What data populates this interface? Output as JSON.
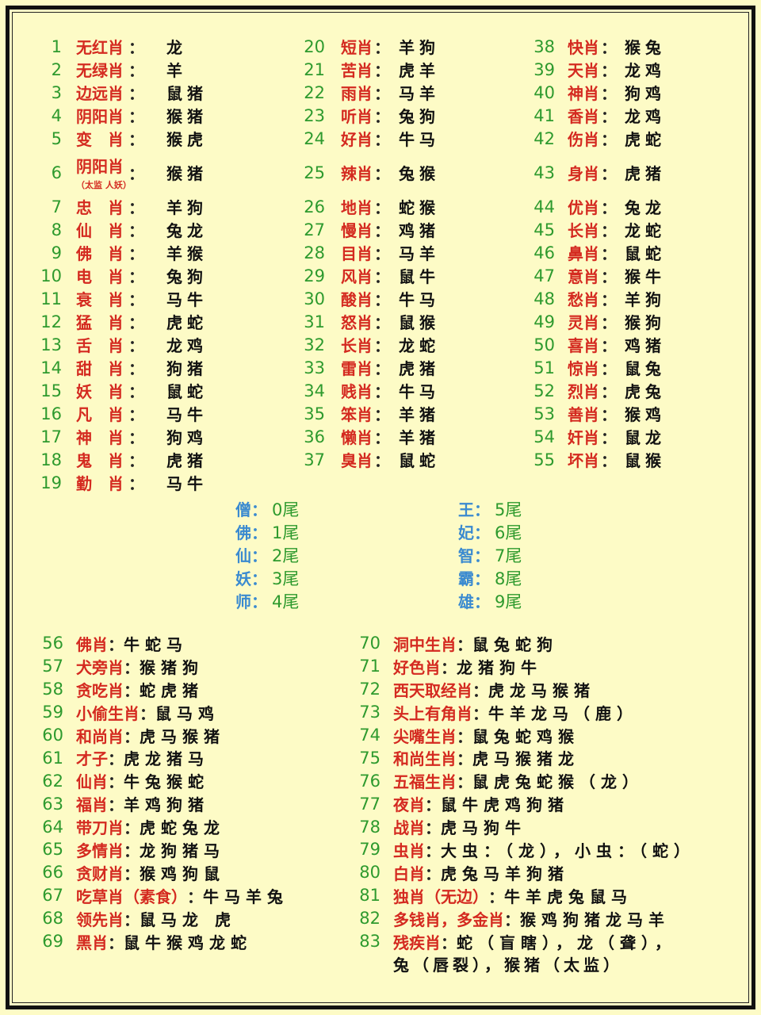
{
  "colors": {
    "number": "#2e9a2e",
    "label": "#d42a20",
    "value": "#111111",
    "tail_key": "#3a8ad0",
    "background": "#fdfbc6"
  },
  "sep": "：",
  "top_columns": [
    [
      {
        "num": "1",
        "label": "无红肖",
        "value": "龙"
      },
      {
        "num": "2",
        "label": "无绿肖",
        "value": "羊"
      },
      {
        "num": "3",
        "label": "边远肖",
        "value": "鼠猪"
      },
      {
        "num": "4",
        "label": "阴阳肖",
        "value": "猴猪"
      },
      {
        "num": "5",
        "label": "变　肖",
        "value": "猴虎"
      },
      {
        "num": "6",
        "label": "阴阳肖",
        "sub": "（太监 人妖）",
        "value": "猴猪"
      },
      {
        "num": "7",
        "label": "忠　肖",
        "value": "羊狗"
      },
      {
        "num": "8",
        "label": "仙　肖",
        "value": "兔龙"
      },
      {
        "num": "9",
        "label": "佛　肖",
        "value": "羊猴"
      },
      {
        "num": "10",
        "label": "电　肖",
        "value": "兔狗"
      },
      {
        "num": "11",
        "label": "衰　肖",
        "value": "马牛"
      },
      {
        "num": "12",
        "label": "猛　肖",
        "value": "虎蛇"
      },
      {
        "num": "13",
        "label": "舌　肖",
        "value": "龙鸡"
      },
      {
        "num": "14",
        "label": "甜　肖",
        "value": "狗猪"
      },
      {
        "num": "15",
        "label": "妖　肖",
        "value": "鼠蛇"
      },
      {
        "num": "16",
        "label": "凡　肖",
        "value": "马牛"
      },
      {
        "num": "17",
        "label": "神　肖",
        "value": "狗鸡"
      },
      {
        "num": "18",
        "label": "鬼　肖",
        "value": "虎猪"
      },
      {
        "num": "19",
        "label": "勤　肖",
        "value": "马牛"
      }
    ],
    [
      {
        "num": "20",
        "label": "短肖",
        "value": "羊狗"
      },
      {
        "num": "21",
        "label": "苦肖",
        "value": "虎羊"
      },
      {
        "num": "22",
        "label": "雨肖",
        "value": "马羊"
      },
      {
        "num": "23",
        "label": "听肖",
        "value": "兔狗"
      },
      {
        "num": "24",
        "label": "好肖",
        "value": "牛马"
      },
      {
        "num": "25",
        "label": "辣肖",
        "value": "兔猴"
      },
      {
        "num": "26",
        "label": "地肖",
        "value": "蛇猴"
      },
      {
        "num": "27",
        "label": "慢肖",
        "value": "鸡猪"
      },
      {
        "num": "28",
        "label": "目肖",
        "value": "马羊"
      },
      {
        "num": "29",
        "label": "风肖",
        "value": "鼠牛"
      },
      {
        "num": "30",
        "label": "酸肖",
        "value": "牛马"
      },
      {
        "num": "31",
        "label": "怒肖",
        "value": "鼠猴"
      },
      {
        "num": "32",
        "label": "长肖",
        "value": "龙蛇"
      },
      {
        "num": "33",
        "label": "雷肖",
        "value": "虎猪"
      },
      {
        "num": "34",
        "label": "贱肖",
        "value": "牛马"
      },
      {
        "num": "35",
        "label": "笨肖",
        "value": "羊猪"
      },
      {
        "num": "36",
        "label": "懒肖",
        "value": "羊猪"
      },
      {
        "num": "37",
        "label": "臭肖",
        "value": "鼠蛇"
      }
    ],
    [
      {
        "num": "38",
        "label": "快肖",
        "value": "猴兔"
      },
      {
        "num": "39",
        "label": "天肖",
        "value": "龙鸡"
      },
      {
        "num": "40",
        "label": "神肖",
        "value": "狗鸡"
      },
      {
        "num": "41",
        "label": "香肖",
        "value": "龙鸡"
      },
      {
        "num": "42",
        "label": "伤肖",
        "value": "虎蛇"
      },
      {
        "num": "43",
        "label": "身肖",
        "value": "虎猪"
      },
      {
        "num": "44",
        "label": "优肖",
        "value": "兔龙"
      },
      {
        "num": "45",
        "label": "长肖",
        "value": "龙蛇"
      },
      {
        "num": "46",
        "label": "鼻肖",
        "value": "鼠蛇"
      },
      {
        "num": "47",
        "label": "意肖",
        "value": "猴牛"
      },
      {
        "num": "48",
        "label": "愁肖",
        "value": "羊狗"
      },
      {
        "num": "49",
        "label": "灵肖",
        "value": "猴狗"
      },
      {
        "num": "50",
        "label": "喜肖",
        "value": "鸡猪"
      },
      {
        "num": "51",
        "label": "惊肖",
        "value": "鼠兔"
      },
      {
        "num": "52",
        "label": "烈肖",
        "value": "虎兔"
      },
      {
        "num": "53",
        "label": "善肖",
        "value": "猴鸡"
      },
      {
        "num": "54",
        "label": "奸肖",
        "value": "鼠龙"
      },
      {
        "num": "55",
        "label": "坏肖",
        "value": "鼠猴"
      }
    ]
  ],
  "tails": [
    [
      {
        "key": "僧",
        "value": "0尾"
      },
      {
        "key": "佛",
        "value": "1尾"
      },
      {
        "key": "仙",
        "value": "2尾"
      },
      {
        "key": "妖",
        "value": "3尾"
      },
      {
        "key": "师",
        "value": "4尾"
      }
    ],
    [
      {
        "key": "王",
        "value": "5尾"
      },
      {
        "key": "妃",
        "value": "6尾"
      },
      {
        "key": "智",
        "value": "7尾"
      },
      {
        "key": "霸",
        "value": "8尾"
      },
      {
        "key": "雄",
        "value": "9尾"
      }
    ]
  ],
  "bottom_columns": [
    [
      {
        "num": "56",
        "label": "佛肖",
        "value": "牛蛇马"
      },
      {
        "num": "57",
        "label": "犬旁肖",
        "value": "猴猪狗"
      },
      {
        "num": "58",
        "label": "贪吃肖",
        "value": "蛇虎猪"
      },
      {
        "num": "59",
        "label": "小偷生肖",
        "value": "鼠马鸡"
      },
      {
        "num": "60",
        "label": "和尚肖",
        "value": "虎马猴猪"
      },
      {
        "num": "61",
        "label": "才子",
        "value": "虎龙猪马"
      },
      {
        "num": "62",
        "label": "仙肖",
        "value": "牛兔猴蛇"
      },
      {
        "num": "63",
        "label": "福肖",
        "value": "羊鸡狗猪"
      },
      {
        "num": "64",
        "label": "带刀肖",
        "value": "虎蛇兔龙"
      },
      {
        "num": "65",
        "label": "多情肖",
        "value": "龙狗猪马"
      },
      {
        "num": "66",
        "label": "贪财肖",
        "value": "猴鸡狗鼠"
      },
      {
        "num": "67",
        "label": "吃草肖（素食）",
        "value": "牛马羊兔"
      },
      {
        "num": "68",
        "label": "领先肖",
        "value": "鼠马龙 虎"
      },
      {
        "num": "69",
        "label": "黑肖",
        "value": "鼠牛猴鸡龙蛇"
      }
    ],
    [
      {
        "num": "70",
        "label": "洞中生肖",
        "value": "鼠兔蛇狗"
      },
      {
        "num": "71",
        "label": "好色肖",
        "value": "龙猪狗牛"
      },
      {
        "num": "72",
        "label": "西天取经肖",
        "value": "虎龙马猴猪"
      },
      {
        "num": "73",
        "label": "头上有角肖",
        "value": "牛羊龙马（鹿）"
      },
      {
        "num": "74",
        "label": "尖嘴生肖",
        "value": "鼠兔蛇鸡猴"
      },
      {
        "num": "75",
        "label": "和尚生肖",
        "value": "虎马猴猪龙"
      },
      {
        "num": "76",
        "label": "五福生肖",
        "value": "鼠虎兔蛇猴（龙）"
      },
      {
        "num": "77",
        "label": "夜肖",
        "value": "鼠牛虎鸡狗猪"
      },
      {
        "num": "78",
        "label": "战肖",
        "value": "虎马狗牛"
      },
      {
        "num": "79",
        "label": "虫肖",
        "value": "大虫：（龙），小虫：（蛇）"
      },
      {
        "num": "80",
        "label": "白肖",
        "value": "虎兔马羊狗猪"
      },
      {
        "num": "81",
        "label": "独肖（无边）",
        "value": "牛羊虎兔鼠马"
      },
      {
        "num": "82",
        "label": "多钱肖，多金肖",
        "value": "猴鸡狗猪龙马羊"
      },
      {
        "num": "83",
        "label": "残疾肖",
        "value": "蛇（盲瞎），龙（聋），",
        "continuation": "兔（唇裂），猴猪（太监）"
      }
    ]
  ]
}
